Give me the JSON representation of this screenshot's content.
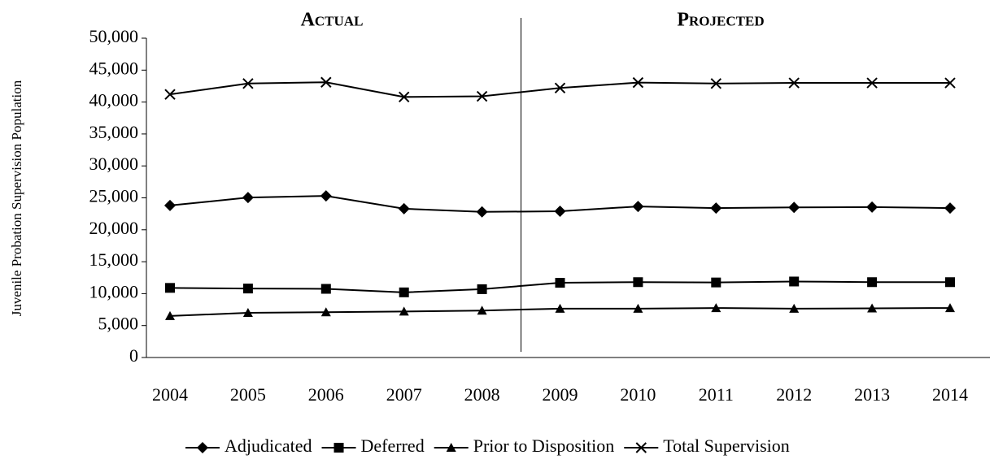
{
  "chart_data": {
    "type": "line",
    "ylabel": "Juvenile Probation Supervision Population",
    "annotations": [
      "Actual",
      "Projected"
    ],
    "categories": [
      "2004",
      "2005",
      "2006",
      "2007",
      "2008",
      "2009",
      "2010",
      "2011",
      "2012",
      "2013",
      "2014"
    ],
    "series": [
      {
        "name": "Adjudicated",
        "color": "#000000",
        "marker": "diamond",
        "values": [
          23800,
          25050,
          25300,
          23300,
          22800,
          22900,
          23650,
          23400,
          23500,
          23550,
          23400
        ]
      },
      {
        "name": "Deferred",
        "color": "#000000",
        "marker": "square",
        "values": [
          10900,
          10800,
          10750,
          10200,
          10700,
          11700,
          11800,
          11750,
          11900,
          11800,
          11800
        ]
      },
      {
        "name": "Prior to Disposition",
        "color": "#000000",
        "marker": "triangle",
        "values": [
          6500,
          7000,
          7100,
          7200,
          7350,
          7650,
          7650,
          7750,
          7650,
          7700,
          7750
        ]
      },
      {
        "name": "Total Supervision",
        "color": "#000000",
        "marker": "x",
        "values": [
          41200,
          42900,
          43100,
          40800,
          40900,
          42200,
          43050,
          42900,
          43000,
          43000,
          43000
        ]
      }
    ],
    "ylim": [
      0,
      50000
    ],
    "yticks": [
      0,
      {
        "value": 5000,
        "label": "5,000"
      },
      {
        "value": 10000,
        "label": "10,000"
      },
      {
        "value": 15000,
        "label": "15,000"
      },
      {
        "value": 20000,
        "label": "20,000"
      },
      {
        "value": 25000,
        "label": "25,000"
      },
      {
        "value": 30000,
        "label": "30,000"
      },
      {
        "value": 35000,
        "label": "35,000"
      },
      {
        "value": 40000,
        "label": "40,000"
      },
      {
        "value": 45000,
        "label": "45,000"
      },
      {
        "value": 50000,
        "label": "50,000"
      }
    ],
    "grid": false,
    "legend": "bottom"
  }
}
